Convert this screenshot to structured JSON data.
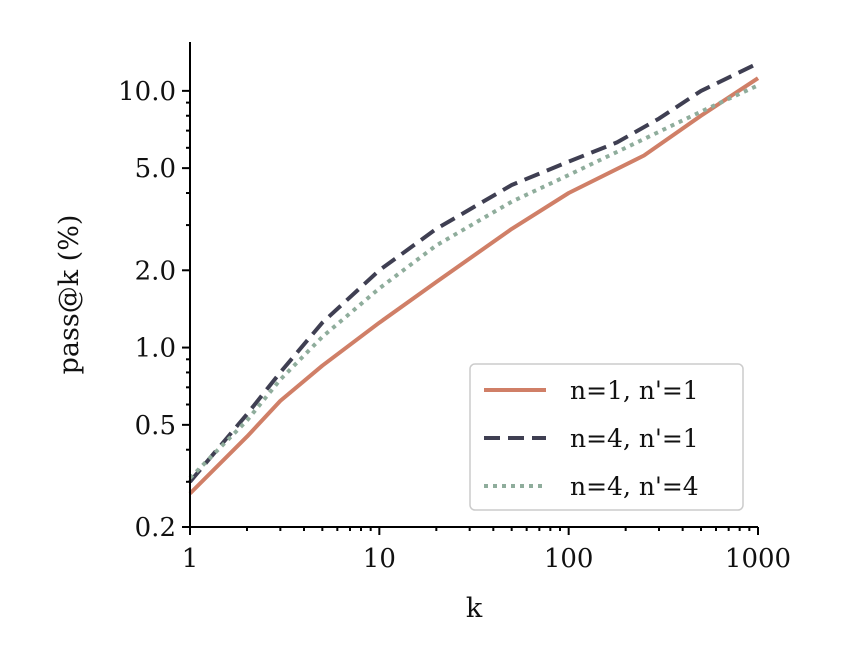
{
  "chart_data": {
    "type": "line",
    "xlabel": "k",
    "ylabel": "pass@k (%)",
    "x_scale": "log",
    "y_scale": "log",
    "xlim": [
      1,
      1000
    ],
    "ylim": [
      0.2,
      15.5
    ],
    "xticks": [
      {
        "value": 1,
        "label": "1"
      },
      {
        "value": 10,
        "label": "10"
      },
      {
        "value": 100,
        "label": "100"
      },
      {
        "value": 1000,
        "label": "1000"
      }
    ],
    "yticks": [
      {
        "value": 0.2,
        "label": "0.2"
      },
      {
        "value": 0.5,
        "label": "0.5"
      },
      {
        "value": 1.0,
        "label": "1.0"
      },
      {
        "value": 2.0,
        "label": "2.0"
      },
      {
        "value": 5.0,
        "label": "5.0"
      },
      {
        "value": 10.0,
        "label": "10.0"
      }
    ],
    "y_minor_ticks": [
      0.3,
      0.4,
      0.6,
      0.7,
      0.8,
      0.9,
      3,
      4,
      6,
      7,
      8,
      9
    ],
    "grid": false,
    "legend_position": "bottom-right",
    "series": [
      {
        "name": "n=1, n'=1",
        "color": "#d07f67",
        "style": "solid",
        "x": [
          1,
          2,
          3,
          5,
          10,
          20,
          50,
          100,
          250,
          500,
          1000
        ],
        "y": [
          0.27,
          0.45,
          0.62,
          0.85,
          1.25,
          1.8,
          2.9,
          4.0,
          5.6,
          8.0,
          11.2
        ]
      },
      {
        "name": "n=4, n'=1",
        "color": "#3f3f52",
        "style": "dashed",
        "x": [
          1,
          2,
          3,
          5,
          10,
          20,
          50,
          100,
          180,
          300,
          500,
          1000
        ],
        "y": [
          0.3,
          0.55,
          0.8,
          1.25,
          2.0,
          2.9,
          4.3,
          5.3,
          6.3,
          7.8,
          10.0,
          12.8
        ]
      },
      {
        "name": "n=4, n'=4",
        "color": "#8fad9c",
        "style": "dotted",
        "x": [
          1,
          2,
          3,
          5,
          10,
          20,
          50,
          100,
          200,
          500,
          1000
        ],
        "y": [
          0.31,
          0.52,
          0.75,
          1.1,
          1.7,
          2.5,
          3.7,
          4.7,
          6.0,
          8.3,
          10.5
        ]
      }
    ]
  }
}
